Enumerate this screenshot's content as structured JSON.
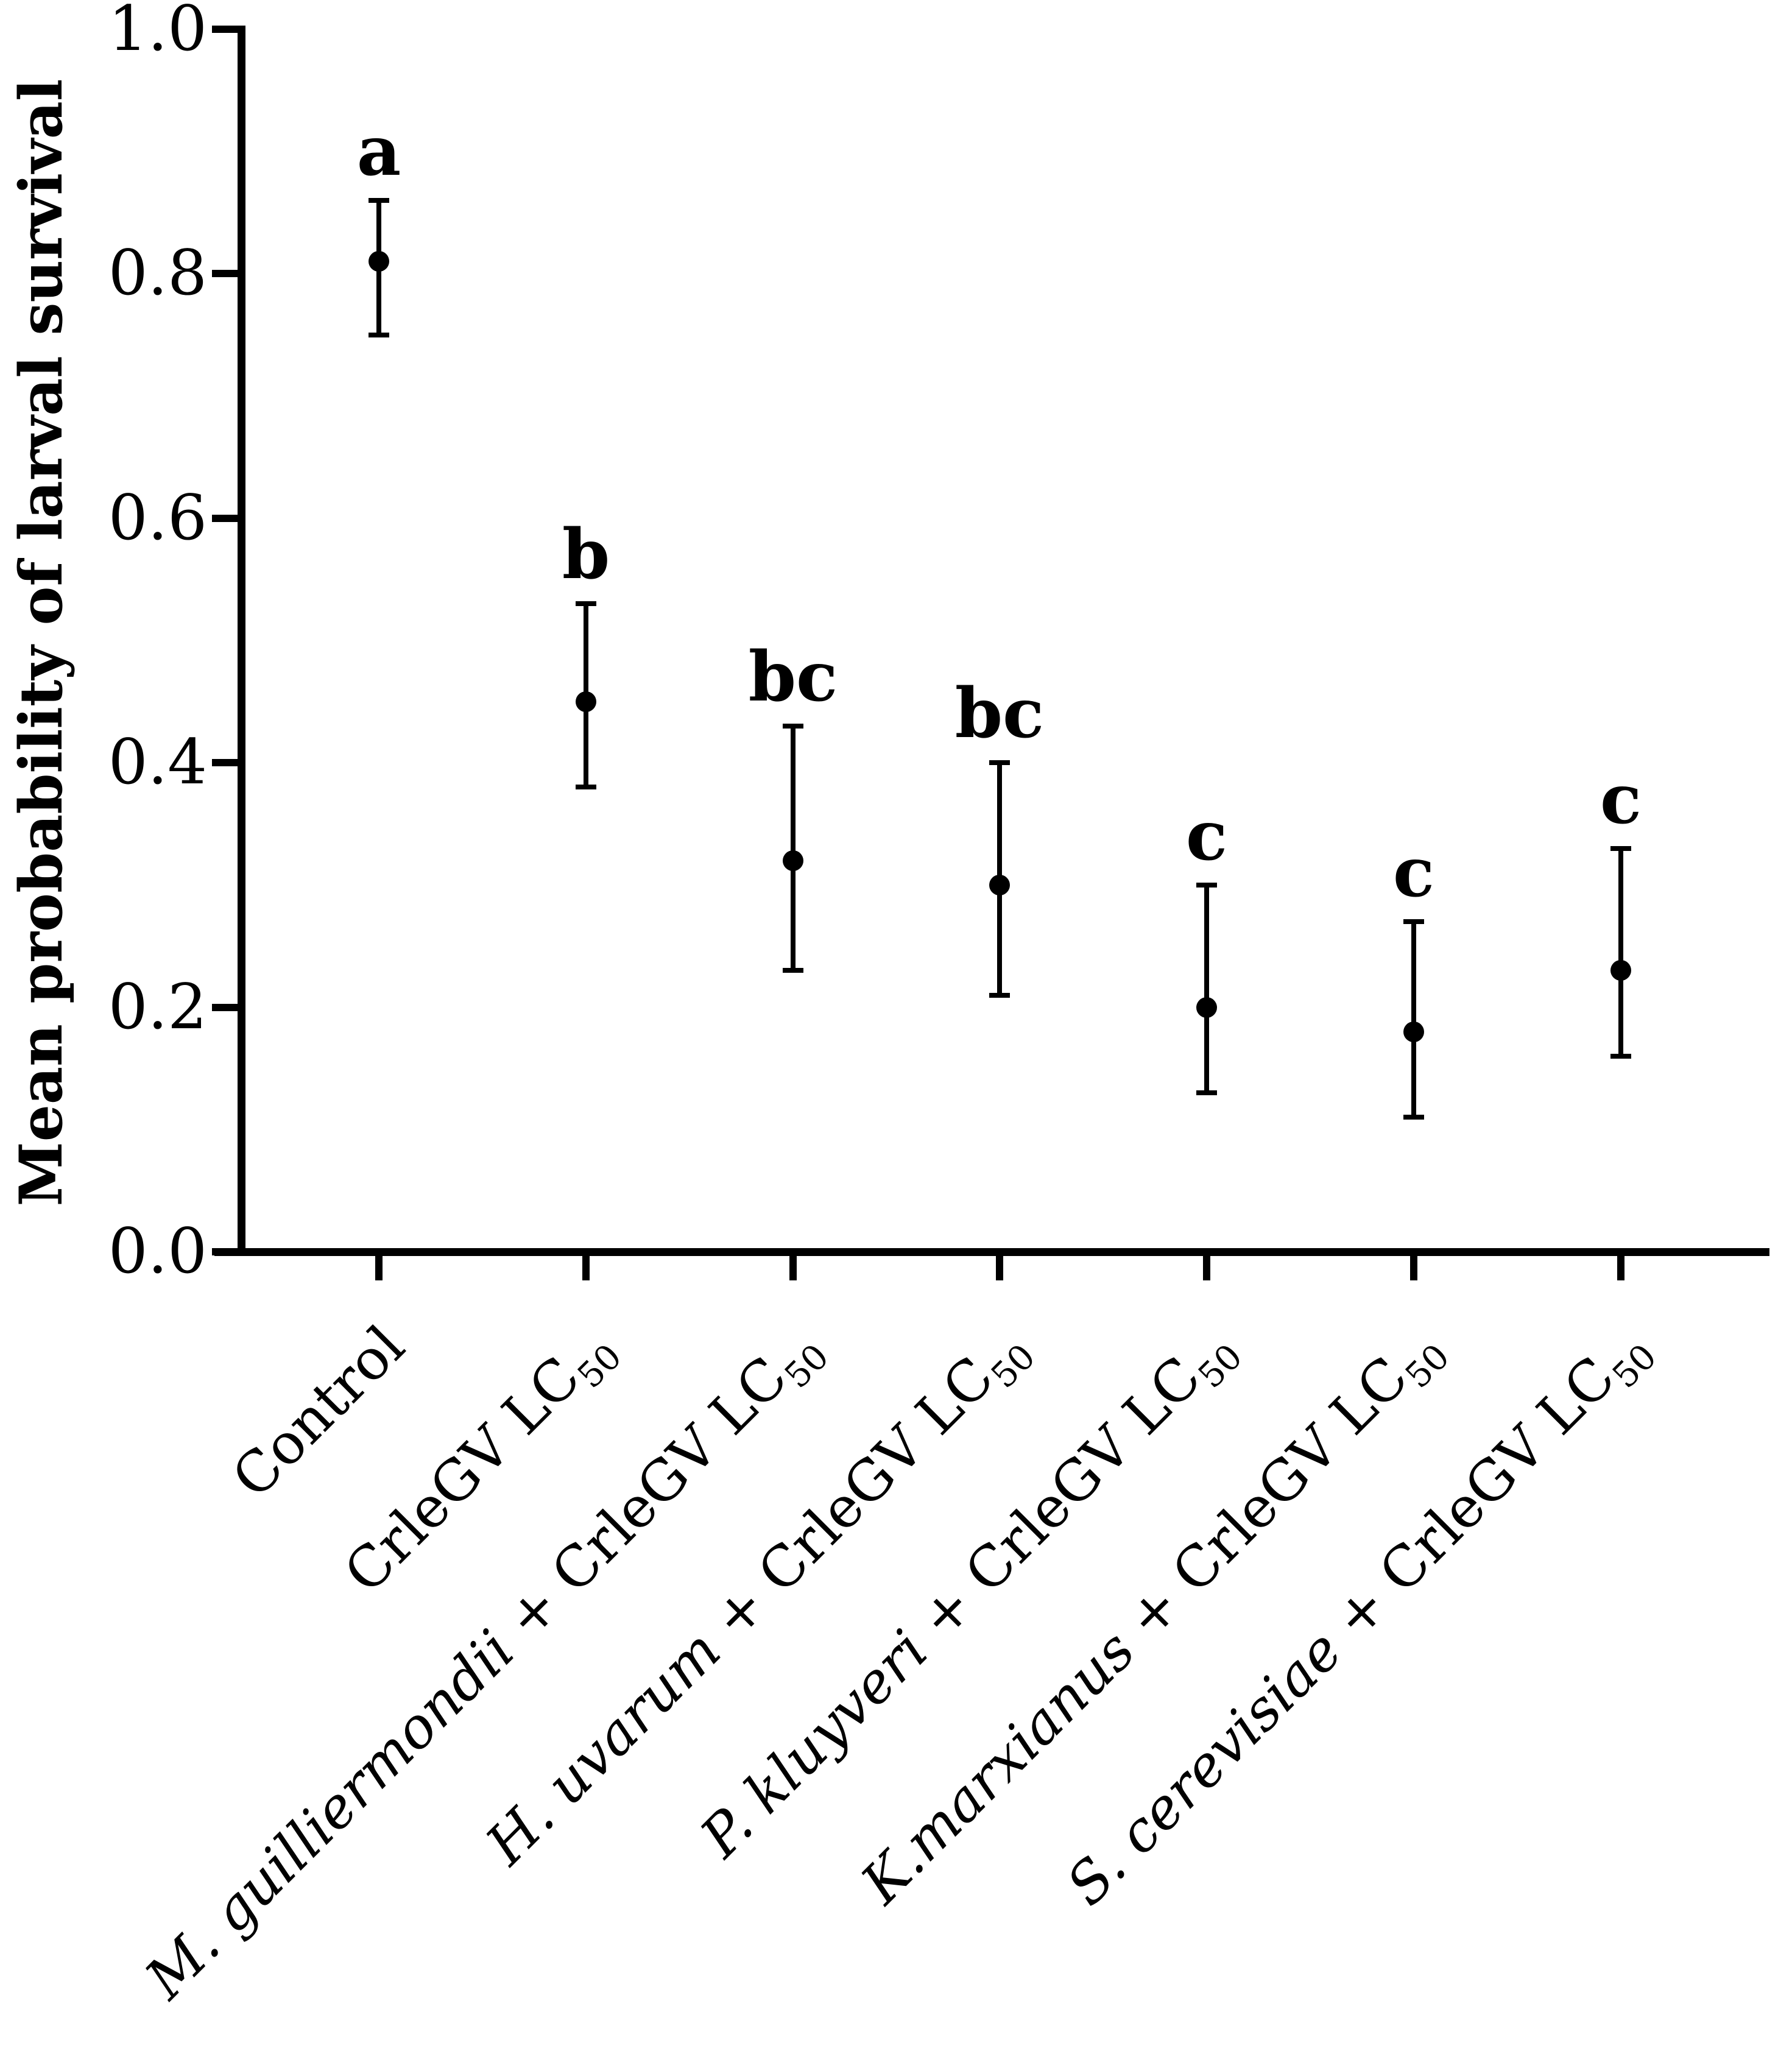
{
  "chart_data": {
    "type": "scatter",
    "title": "",
    "xlabel": "",
    "ylabel": "Mean probability of larval survival",
    "ylim": [
      0.0,
      1.0
    ],
    "yticks": [
      0.0,
      0.2,
      0.4,
      0.6,
      0.8,
      1.0
    ],
    "ytick_labels": [
      "0.0",
      "0.2",
      "0.4",
      "0.6",
      "0.8",
      "1.0"
    ],
    "grid": false,
    "legend": "none",
    "marker": "filled-circle",
    "error_bars": "vertical-with-caps",
    "colors": {
      "points": "#000000",
      "error_bars": "#000000",
      "axis": "#000000",
      "text": "#000000",
      "background": "#ffffff"
    },
    "categories": [
      {
        "italic": "",
        "plain": "Control",
        "sub": ""
      },
      {
        "italic": "",
        "plain": "CrleGV LC",
        "sub": "50"
      },
      {
        "italic": "M. guilliermondii",
        "plain": " + CrleGV LC",
        "sub": "50"
      },
      {
        "italic": "H. uvarum",
        "plain": " + CrleGV LC",
        "sub": "50"
      },
      {
        "italic": "P. kluyveri",
        "plain": " + CrleGV LC",
        "sub": "50"
      },
      {
        "italic": "K.marxianus",
        "plain": " + CrleGV LC",
        "sub": "50"
      },
      {
        "italic": "S. cerevisiae",
        "plain": " + CrleGV LC",
        "sub": "50"
      }
    ],
    "series": [
      {
        "name": "Mean probability of larval survival",
        "points": [
          {
            "category": "Control",
            "mean": 0.81,
            "ci_low": 0.75,
            "ci_high": 0.86,
            "letter": "a"
          },
          {
            "category": "CrleGV LC50",
            "mean": 0.45,
            "ci_low": 0.38,
            "ci_high": 0.53,
            "letter": "b"
          },
          {
            "category": "M. guilliermondii + CrleGV LC50",
            "mean": 0.32,
            "ci_low": 0.23,
            "ci_high": 0.43,
            "letter": "bc"
          },
          {
            "category": "H. uvarum + CrleGV LC50",
            "mean": 0.3,
            "ci_low": 0.21,
            "ci_high": 0.4,
            "letter": "bc"
          },
          {
            "category": "P. kluyveri + CrleGV LC50",
            "mean": 0.2,
            "ci_low": 0.13,
            "ci_high": 0.3,
            "letter": "c"
          },
          {
            "category": "K.marxianus + CrleGV LC50",
            "mean": 0.18,
            "ci_low": 0.11,
            "ci_high": 0.27,
            "letter": "c"
          },
          {
            "category": "S. cerevisiae + CrleGV LC50",
            "mean": 0.23,
            "ci_low": 0.16,
            "ci_high": 0.33,
            "letter": "c"
          }
        ]
      }
    ]
  }
}
